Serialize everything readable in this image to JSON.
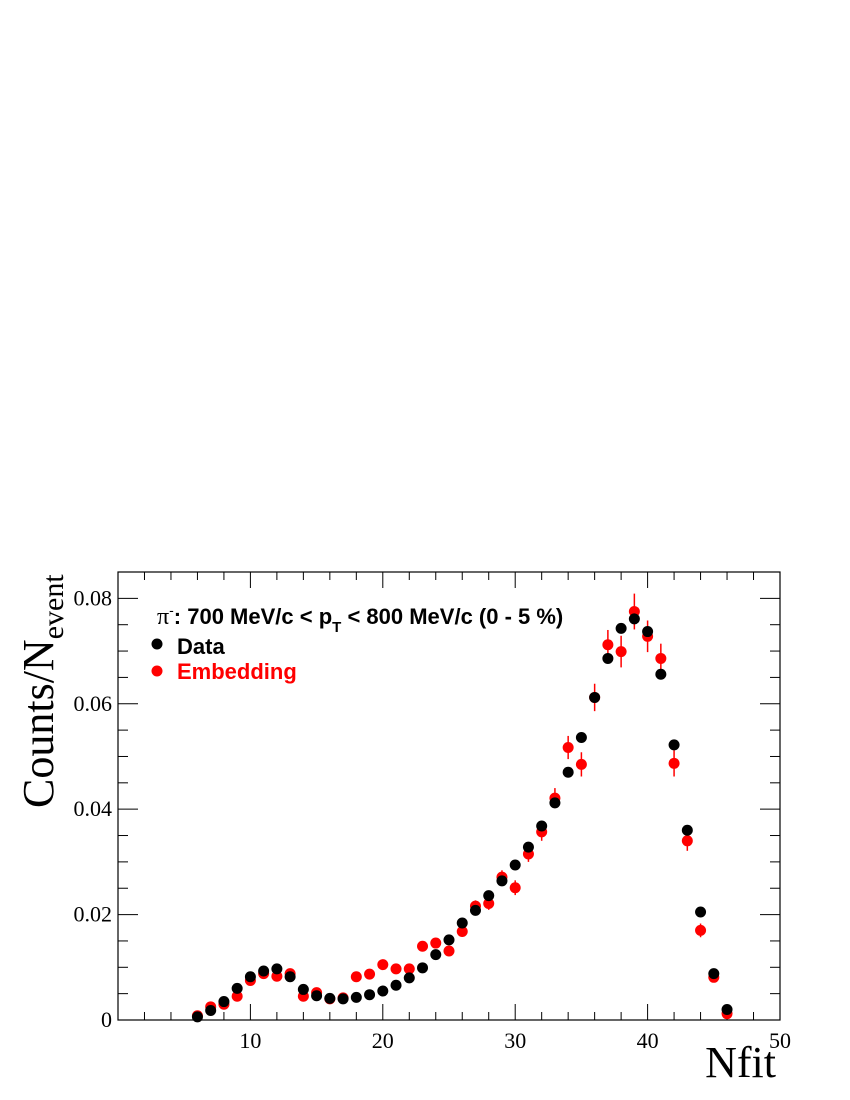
{
  "chart_data": {
    "type": "scatter",
    "title": {
      "particle": "π",
      "charge": "-",
      "text_before_pt": ": 700 MeV/c < p",
      "pt_subscript": "T",
      "text_after_pt": " < 800 MeV/c (0 - 5 %)"
    },
    "xlabel": "Nfit",
    "ylabel": {
      "base": "Counts/N",
      "subscript": "event"
    },
    "xlim": [
      0,
      50
    ],
    "ylim": [
      0,
      0.085
    ],
    "x_ticks": [
      10,
      20,
      30,
      40,
      50
    ],
    "x_tick_labels": [
      "10",
      "20",
      "30",
      "40",
      "50"
    ],
    "y_ticks": [
      0,
      0.02,
      0.04,
      0.06,
      0.08
    ],
    "y_tick_labels": [
      "0",
      "0.02",
      "0.04",
      "0.06",
      "0.08"
    ],
    "grid": false,
    "legend_position": "top-left",
    "series": [
      {
        "name": "Data",
        "color": "#000000",
        "x": [
          6,
          7,
          8,
          9,
          10,
          11,
          12,
          13,
          14,
          15,
          16,
          17,
          18,
          19,
          20,
          21,
          22,
          23,
          24,
          25,
          26,
          27,
          28,
          29,
          30,
          31,
          32,
          33,
          34,
          35,
          36,
          37,
          38,
          39,
          40,
          41,
          42,
          43,
          44,
          45,
          46
        ],
        "y": [
          0.0006,
          0.0018,
          0.0035,
          0.006,
          0.0082,
          0.0093,
          0.0097,
          0.0082,
          0.0058,
          0.0046,
          0.0041,
          0.004,
          0.0043,
          0.0048,
          0.0055,
          0.0066,
          0.008,
          0.0099,
          0.0124,
          0.0152,
          0.0184,
          0.0208,
          0.0236,
          0.0264,
          0.0294,
          0.0328,
          0.0368,
          0.0412,
          0.047,
          0.0536,
          0.0612,
          0.0686,
          0.0743,
          0.0761,
          0.0737,
          0.0656,
          0.0522,
          0.036,
          0.0205,
          0.0088,
          0.002
        ],
        "err": [
          0.0002,
          0.0002,
          0.0002,
          0.0002,
          0.0002,
          0.0002,
          0.0002,
          0.0002,
          0.0002,
          0.0002,
          0.0002,
          0.0002,
          0.0002,
          0.0002,
          0.0002,
          0.0002,
          0.0002,
          0.0002,
          0.0002,
          0.0002,
          0.0002,
          0.0002,
          0.0002,
          0.0002,
          0.0002,
          0.0002,
          0.0002,
          0.0002,
          0.0002,
          0.0002,
          0.0002,
          0.0002,
          0.0002,
          0.0002,
          0.0002,
          0.0002,
          0.0002,
          0.0002,
          0.0002,
          0.0002,
          0.0002
        ]
      },
      {
        "name": "Embedding",
        "color": "#ff0000",
        "x": [
          6,
          7,
          8,
          9,
          10,
          11,
          12,
          13,
          14,
          15,
          16,
          17,
          18,
          19,
          20,
          21,
          22,
          23,
          24,
          25,
          26,
          27,
          28,
          29,
          30,
          31,
          32,
          33,
          34,
          35,
          36,
          37,
          38,
          39,
          40,
          41,
          42,
          43,
          44,
          45,
          46
        ],
        "y": [
          0.0008,
          0.0025,
          0.003,
          0.0045,
          0.0075,
          0.0088,
          0.0083,
          0.0088,
          0.0045,
          0.0052,
          0.004,
          0.0042,
          0.0082,
          0.0087,
          0.0105,
          0.0097,
          0.0097,
          0.014,
          0.0146,
          0.0131,
          0.0168,
          0.0216,
          0.0221,
          0.0271,
          0.0251,
          0.0315,
          0.0357,
          0.0421,
          0.0517,
          0.0485,
          0.0612,
          0.0712,
          0.0699,
          0.0775,
          0.0728,
          0.0686,
          0.0487,
          0.034,
          0.017,
          0.0081,
          0.0012
        ],
        "err": [
          0.0004,
          0.0005,
          0.0005,
          0.0006,
          0.0006,
          0.0007,
          0.0007,
          0.0007,
          0.0006,
          0.0006,
          0.0005,
          0.0005,
          0.0007,
          0.0007,
          0.0008,
          0.0008,
          0.0008,
          0.0009,
          0.0009,
          0.0009,
          0.001,
          0.0011,
          0.0012,
          0.0013,
          0.0014,
          0.0015,
          0.0017,
          0.0019,
          0.0022,
          0.0023,
          0.0026,
          0.0028,
          0.003,
          0.0034,
          0.003,
          0.0028,
          0.0025,
          0.0019,
          0.0013,
          0.0008,
          0.0004
        ]
      }
    ]
  }
}
